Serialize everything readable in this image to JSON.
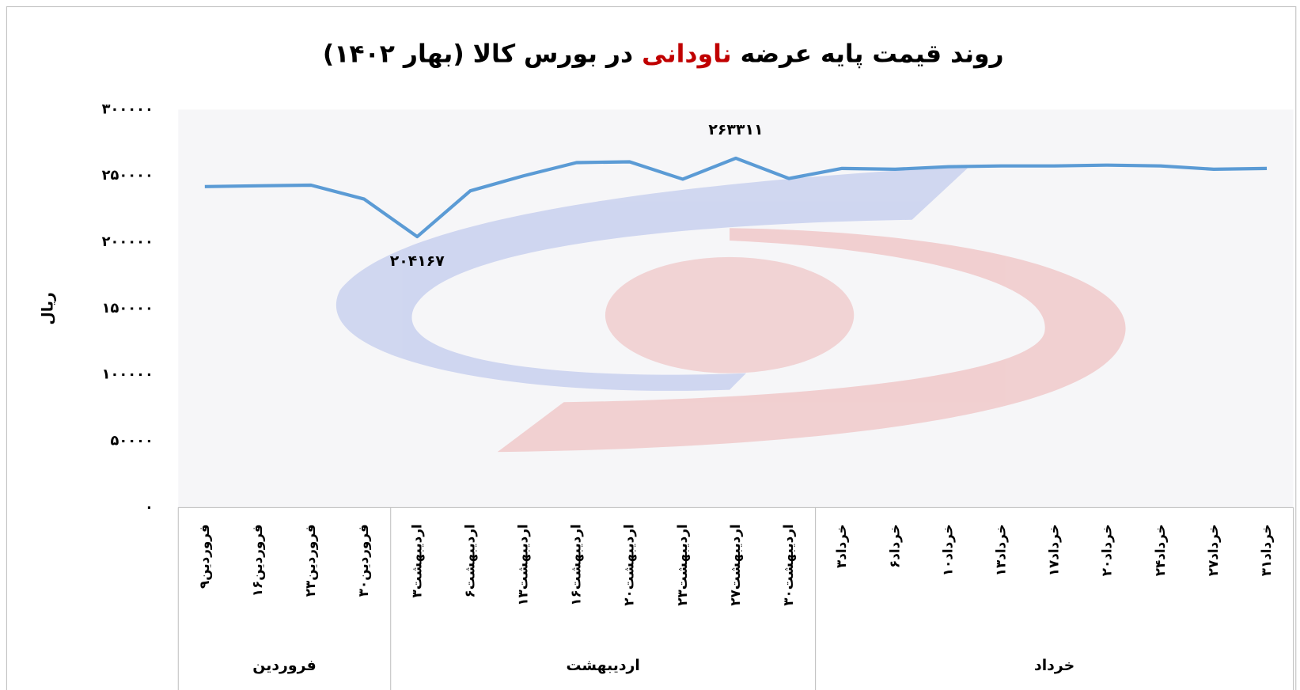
{
  "chart_data": {
    "type": "line",
    "title": [
      {
        "text": "روند قیمت پایه عرضه "
      },
      {
        "text": "ناودانی",
        "color": "#c00000"
      },
      {
        "text": " در بورس کالا (بهار ۱۴۰۲)"
      }
    ],
    "y_label": "ریال",
    "categories": [
      "۹فروردین",
      "۱۶فروردین",
      "۲۳فروردین",
      "۳۰فروردین",
      "۳اردیبهشت",
      "۶اردیبهشت",
      "۱۳اردیبهشت",
      "۱۶اردیبهشت",
      "۲۰اردیبهشت",
      "۲۳اردیبهشت",
      "۲۷اردیبهشت",
      "۳۰اردیبهشت",
      "۳خرداد",
      "۶خرداد",
      "۱۰خرداد",
      "۱۳خرداد",
      "۱۷خرداد",
      "۲۰خرداد",
      "۲۴خرداد",
      "۲۷خرداد",
      "۳۱خرداد"
    ],
    "groups": [
      {
        "name": "فروردین",
        "count": 4
      },
      {
        "name": "اردیبهشت",
        "count": 8
      },
      {
        "name": "خرداد",
        "count": 9
      }
    ],
    "series": [
      {
        "name": "ناودانی",
        "color": "#5b9bd5",
        "values": [
          241900,
          242500,
          243000,
          232500,
          204167,
          238700,
          250000,
          260000,
          260600,
          247500,
          263311,
          248000,
          255600,
          255000,
          256900,
          257500,
          257500,
          258100,
          257500,
          255000,
          255600
        ],
        "value_labels": [
          null,
          null,
          null,
          null,
          "۲۰۴۱۶۷",
          null,
          null,
          null,
          null,
          null,
          "۲۶۳۳۱۱",
          null,
          null,
          null,
          null,
          null,
          null,
          null,
          null,
          null,
          null
        ]
      }
    ],
    "ylim": [
      0,
      300000
    ],
    "yticks": [
      {
        "value": 0,
        "label": "۰"
      },
      {
        "value": 50000,
        "label": "۵۰۰۰۰"
      },
      {
        "value": 100000,
        "label": "۱۰۰۰۰۰"
      },
      {
        "value": 150000,
        "label": "۱۵۰۰۰۰"
      },
      {
        "value": 200000,
        "label": "۲۰۰۰۰۰"
      },
      {
        "value": 250000,
        "label": "۲۵۰۰۰۰"
      },
      {
        "value": 300000,
        "label": "۳۰۰۰۰۰"
      }
    ],
    "grid": false
  }
}
